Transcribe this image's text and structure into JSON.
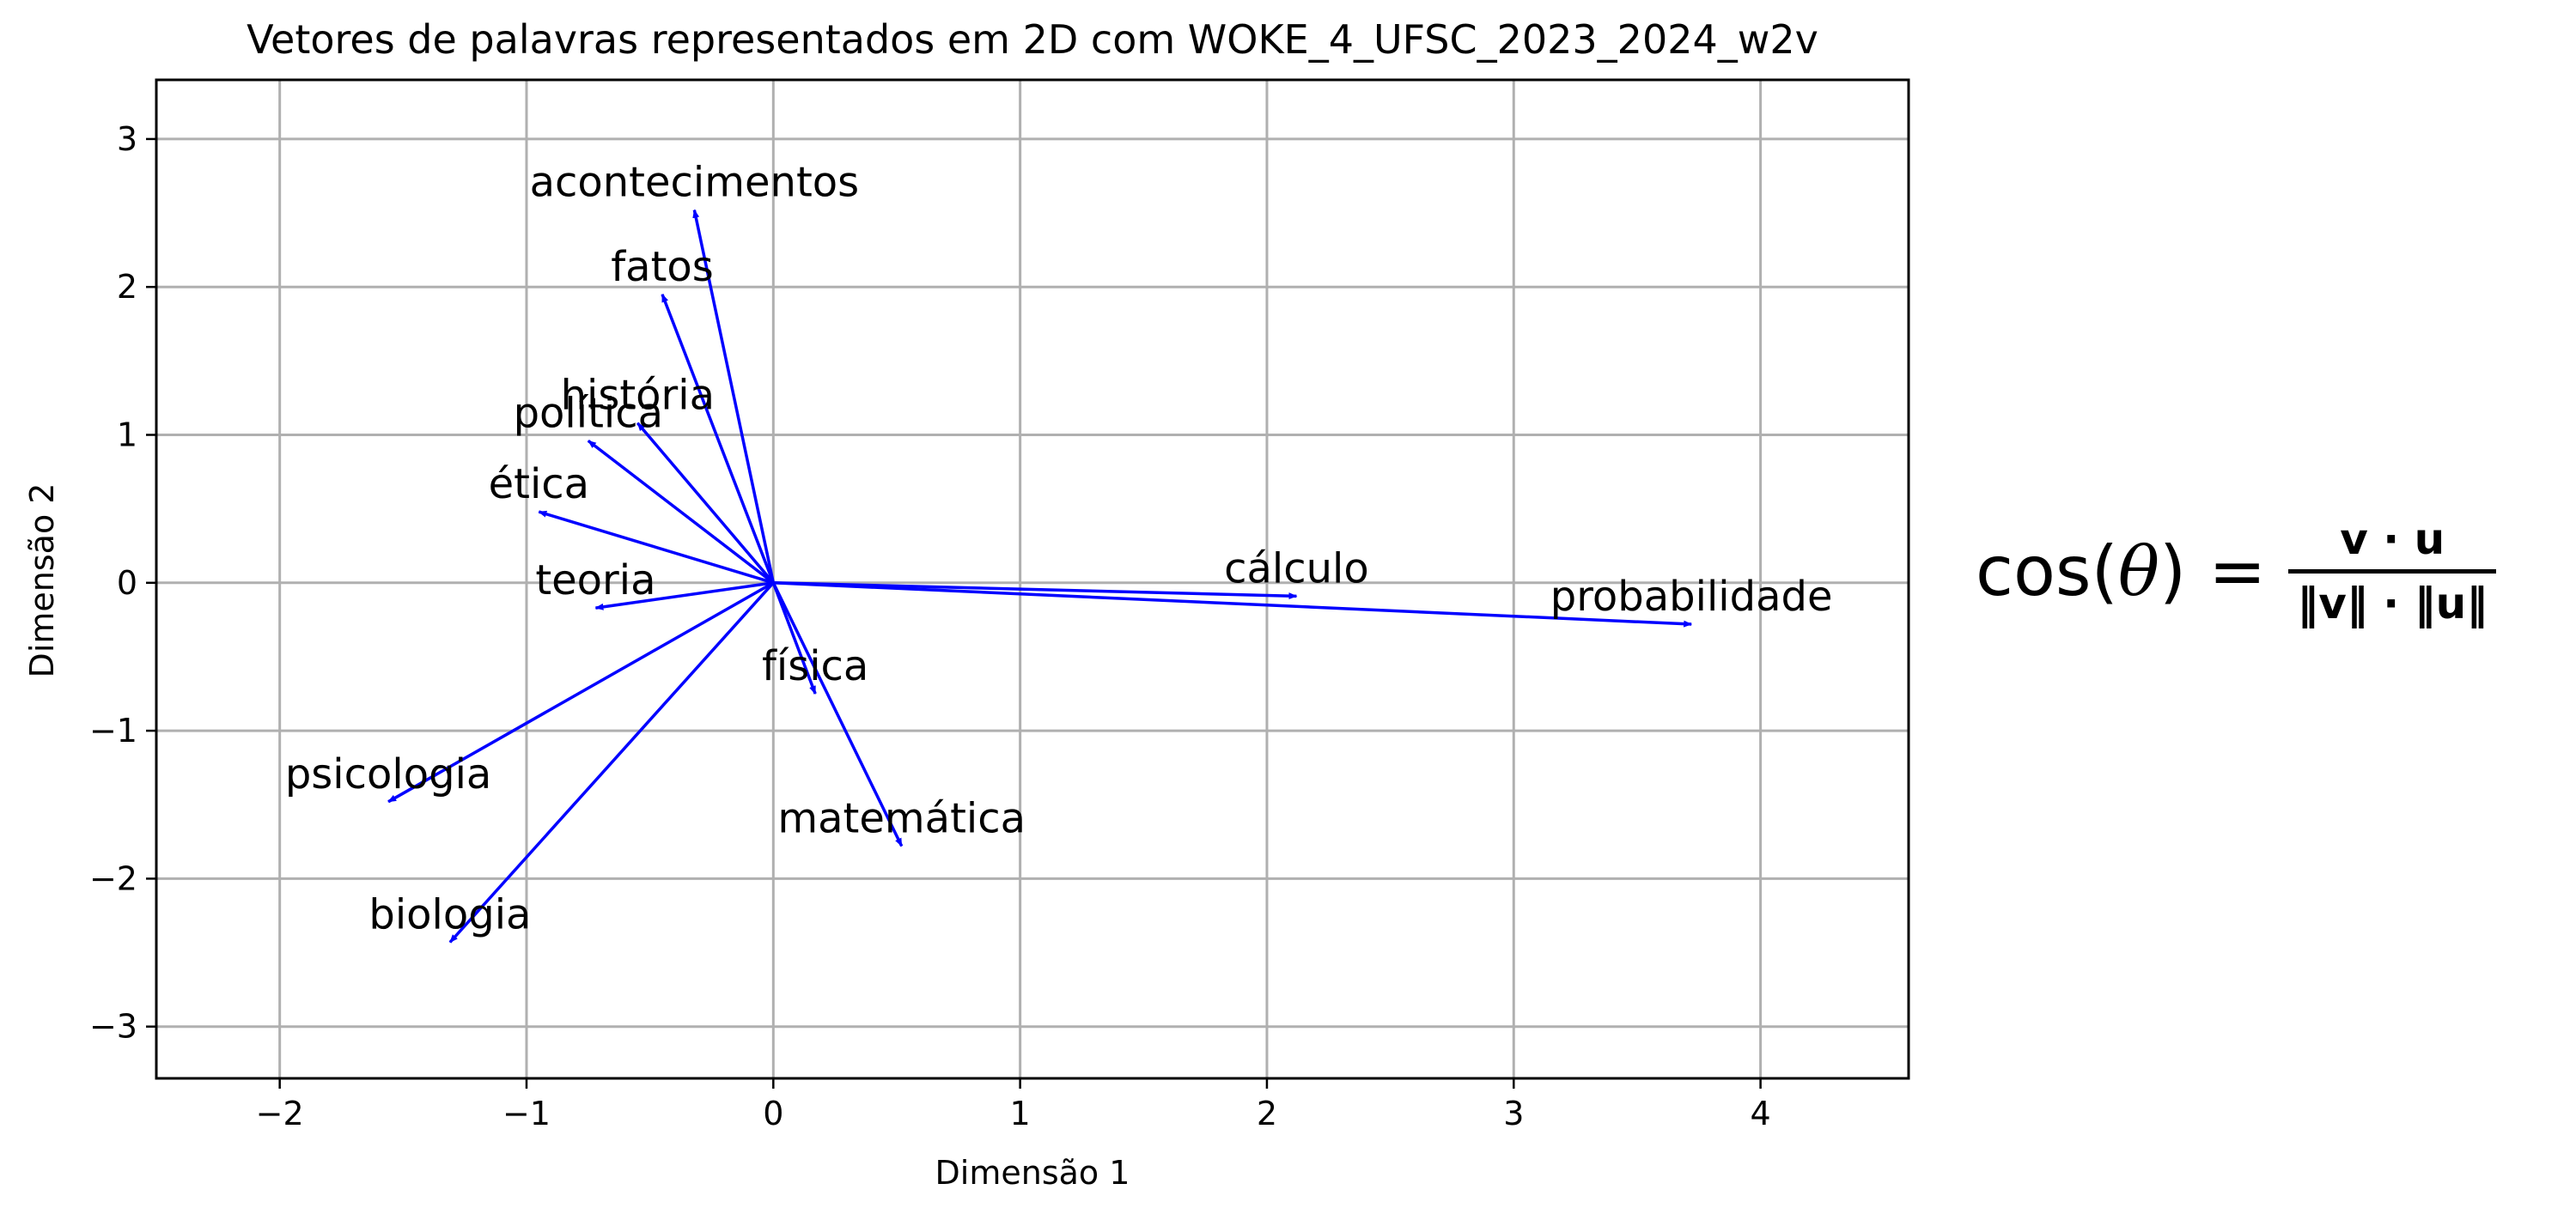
{
  "chart_data": {
    "type": "quiver",
    "title": "Vetores de palavras representados em 2D com WOKE_4_UFSC_2023_2024_w2v",
    "xlabel": "Dimensão 1",
    "ylabel": "Dimensão 2",
    "xlim": [
      -2.5,
      4.6
    ],
    "ylim": [
      -3.35,
      3.4
    ],
    "xticks": [
      -2,
      -1,
      0,
      1,
      2,
      3,
      4
    ],
    "yticks": [
      -3,
      -2,
      -1,
      0,
      1,
      2,
      3
    ],
    "xtick_labels": [
      "−2",
      "−1",
      "0",
      "1",
      "2",
      "3",
      "4"
    ],
    "ytick_labels": [
      "−3",
      "−2",
      "−1",
      "0",
      "1",
      "2",
      "3"
    ],
    "grid": true,
    "arrow_color": "#0000ff",
    "origin": [
      0,
      0
    ],
    "vectors": [
      {
        "word": "acontecimentos",
        "x": -0.32,
        "y": 2.52
      },
      {
        "word": "fatos",
        "x": -0.45,
        "y": 1.95
      },
      {
        "word": "história",
        "x": -0.55,
        "y": 1.08
      },
      {
        "word": "política",
        "x": -0.75,
        "y": 0.96
      },
      {
        "word": "ética",
        "x": -0.95,
        "y": 0.48
      },
      {
        "word": "teoria",
        "x": -0.72,
        "y": -0.17
      },
      {
        "word": "cálculo",
        "x": 2.12,
        "y": -0.09
      },
      {
        "word": "probabilidade",
        "x": 3.72,
        "y": -0.28
      },
      {
        "word": "física",
        "x": 0.17,
        "y": -0.75
      },
      {
        "word": "matemática",
        "x": 0.52,
        "y": -1.78
      },
      {
        "word": "psicologia",
        "x": -1.56,
        "y": -1.48
      },
      {
        "word": "biologia",
        "x": -1.31,
        "y": -2.43
      }
    ]
  },
  "formula": {
    "lhs_func": "cos(",
    "lhs_var": "θ",
    "lhs_close": ")",
    "eq": "=",
    "numerator": "v · u",
    "denominator": "‖v‖ · ‖u‖"
  }
}
